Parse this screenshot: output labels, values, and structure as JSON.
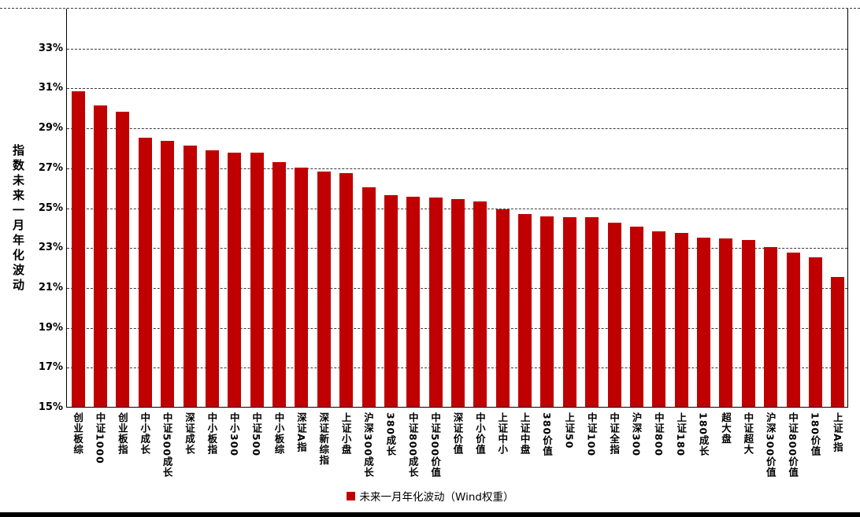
{
  "chart_data": {
    "type": "bar",
    "title": "",
    "ylabel": "指数未来一月年化波动",
    "legend": "未来一月年化波动（Wind权重）",
    "bar_color": "#C00000",
    "grid": "dashed-horizontal",
    "legend_position": "bottom-center",
    "ylim": [
      15,
      35
    ],
    "ytick_values": [
      33,
      31,
      29,
      27,
      25,
      23,
      21,
      19,
      17,
      15
    ],
    "ytick_labels": [
      "33%",
      "31%",
      "29%",
      "27%",
      "25%",
      "23%",
      "21%",
      "19%",
      "17%",
      "15%"
    ],
    "categories": [
      "创业板综",
      "中证1000",
      "创业板指",
      "中小成长",
      "中证500成长",
      "深证成长",
      "中小板指",
      "中小300",
      "中证500",
      "中小板综",
      "深证A指",
      "深证新综指",
      "上证小盘",
      "沪深300成长",
      "380成长",
      "中证800成长",
      "中证500价值",
      "深证价值",
      "中小价值",
      "上证中小",
      "上证中盘",
      "380价值",
      "上证50",
      "中证100",
      "中证全指",
      "沪深300",
      "中证800",
      "上证180",
      "180成长",
      "超大盘",
      "中证超大",
      "沪深300价值",
      "中证800价值",
      "180价值",
      "上证A指"
    ],
    "values": [
      30.8,
      30.1,
      29.8,
      28.5,
      28.35,
      28.1,
      27.85,
      27.75,
      27.75,
      27.25,
      27.0,
      26.8,
      26.7,
      26.0,
      25.6,
      25.55,
      25.5,
      25.4,
      25.3,
      24.9,
      24.65,
      24.55,
      24.5,
      24.5,
      24.25,
      24.05,
      23.8,
      23.7,
      23.5,
      23.45,
      23.35,
      23.0,
      22.75,
      22.5,
      21.5
    ]
  }
}
